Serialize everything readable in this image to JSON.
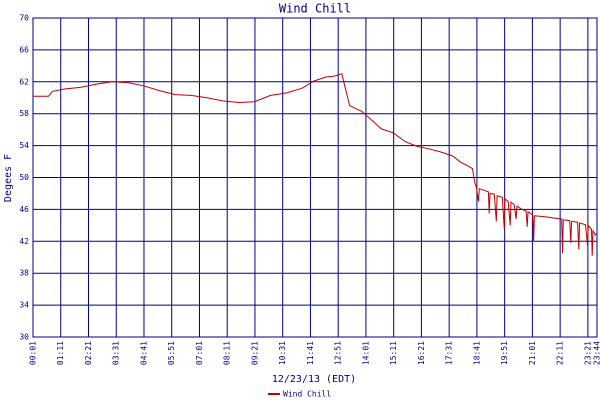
{
  "chart_data": {
    "type": "line",
    "title": "Wind Chill",
    "x_label": "12/23/13 (EDT)",
    "y_label": "Degees F",
    "x": [
      1,
      40,
      50,
      80,
      120,
      160,
      200,
      240,
      280,
      320,
      360,
      400,
      440,
      480,
      520,
      560,
      600,
      640,
      680,
      710,
      740,
      760,
      780,
      790,
      800,
      830,
      860,
      880,
      910,
      940,
      970,
      1000,
      1030,
      1060,
      1080,
      1100,
      1110,
      1115,
      1120,
      1125,
      1127,
      1140,
      1150,
      1152,
      1154,
      1165,
      1170,
      1172,
      1185,
      1190,
      1192,
      1200,
      1205,
      1207,
      1215,
      1220,
      1222,
      1235,
      1245,
      1248,
      1250,
      1262,
      1264,
      1266,
      1290,
      1320,
      1335,
      1337,
      1339,
      1355,
      1358,
      1360,
      1375,
      1378,
      1380,
      1395,
      1400,
      1402,
      1410,
      1412,
      1414,
      1420,
      1424
    ],
    "series": [
      {
        "name": "Wind Chill",
        "color": "#c00000",
        "values": [
          60.2,
          60.2,
          60.8,
          61.1,
          61.3,
          61.7,
          62.0,
          61.9,
          61.5,
          60.9,
          60.4,
          60.3,
          60.0,
          59.6,
          59.4,
          59.5,
          60.3,
          60.6,
          61.2,
          62.1,
          62.6,
          62.7,
          63.0,
          61.0,
          59.0,
          58.3,
          57.0,
          56.1,
          55.6,
          54.5,
          53.9,
          53.6,
          53.2,
          52.7,
          51.9,
          51.4,
          51.1,
          49.5,
          48.7,
          47.0,
          48.6,
          48.4,
          48.2,
          45.5,
          48.0,
          47.9,
          44.5,
          47.7,
          47.5,
          43.5,
          47.3,
          47.0,
          44.0,
          46.9,
          46.6,
          44.8,
          46.4,
          46.0,
          45.8,
          43.8,
          45.7,
          45.3,
          42.0,
          45.2,
          45.1,
          44.9,
          44.8,
          40.5,
          44.7,
          44.6,
          41.8,
          44.5,
          44.4,
          41.0,
          44.3,
          44.1,
          41.5,
          44.0,
          43.5,
          40.2,
          43.3,
          42.8,
          43.0
        ]
      }
    ],
    "xlim": [
      1,
      1424
    ],
    "xticks": [
      {
        "value": 1,
        "label": "00:01"
      },
      {
        "value": 71,
        "label": "01:11"
      },
      {
        "value": 141,
        "label": "02:21"
      },
      {
        "value": 211,
        "label": "03:31"
      },
      {
        "value": 281,
        "label": "04:41"
      },
      {
        "value": 351,
        "label": "05:51"
      },
      {
        "value": 421,
        "label": "07:01"
      },
      {
        "value": 491,
        "label": "08:11"
      },
      {
        "value": 561,
        "label": "09:21"
      },
      {
        "value": 631,
        "label": "10:31"
      },
      {
        "value": 701,
        "label": "11:41"
      },
      {
        "value": 771,
        "label": "12:51"
      },
      {
        "value": 841,
        "label": "14:01"
      },
      {
        "value": 911,
        "label": "15:11"
      },
      {
        "value": 981,
        "label": "16:21"
      },
      {
        "value": 1051,
        "label": "17:31"
      },
      {
        "value": 1121,
        "label": "18:41"
      },
      {
        "value": 1191,
        "label": "19:51"
      },
      {
        "value": 1261,
        "label": "21:01"
      },
      {
        "value": 1331,
        "label": "22:11"
      },
      {
        "value": 1401,
        "label": "23:21"
      },
      {
        "value": 1424,
        "label": "23:44"
      }
    ],
    "ylim": [
      30,
      70
    ],
    "yticks": [
      30,
      34,
      38,
      42,
      46,
      50,
      54,
      58,
      62,
      66,
      70
    ],
    "grid": true
  }
}
